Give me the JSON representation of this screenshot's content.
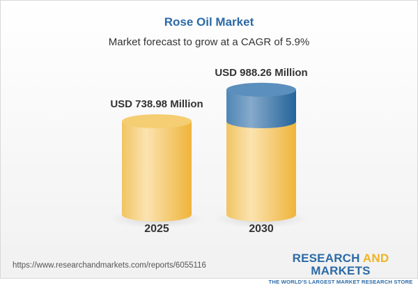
{
  "title": "Rose Oil Market",
  "subtitle": "Market forecast to grow at a CAGR of 5.9%",
  "chart_data": {
    "type": "bar",
    "style": "3d-cylinder",
    "categories": [
      "2025",
      "2030"
    ],
    "values": [
      738.98,
      988.26
    ],
    "data_labels": [
      "USD 738.98 Million",
      "USD 988.26 Million"
    ],
    "colors": {
      "base": "#f2c25a",
      "growth": "#4f86b5"
    }
  },
  "footer": {
    "url": "https://www.researchandmarkets.com/reports/6055116",
    "logo_part1": "RESEARCH ",
    "logo_part2": "AND",
    "logo_part3": " MARKETS",
    "tagline": "THE WORLD'S LARGEST MARKET RESEARCH STORE"
  }
}
